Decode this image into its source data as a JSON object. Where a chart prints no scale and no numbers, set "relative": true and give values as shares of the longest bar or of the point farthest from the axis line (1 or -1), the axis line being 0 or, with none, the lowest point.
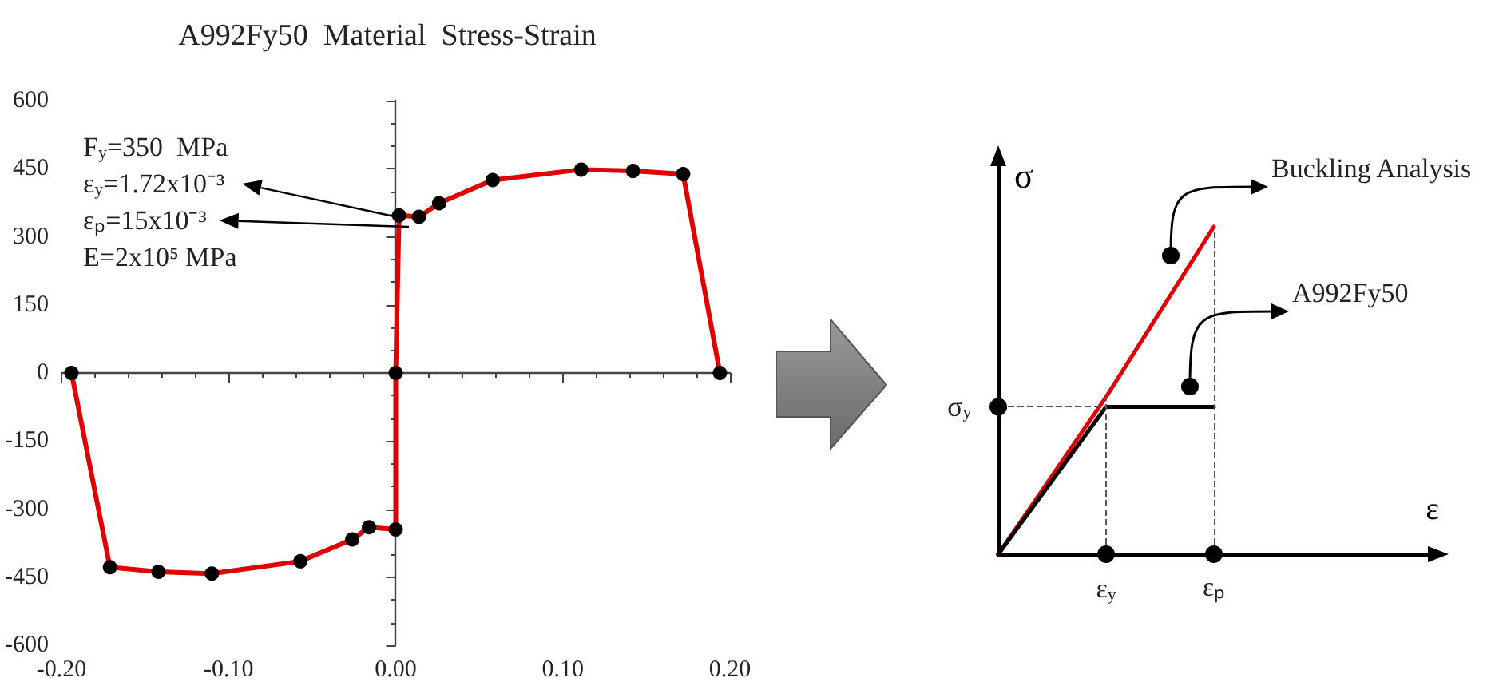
{
  "chart_data": [
    {
      "type": "line",
      "title": "A992Fy50  Material  Stress-Strain",
      "xlim": [
        -0.2,
        0.2
      ],
      "xticks": [
        {
          "value": -0.2,
          "label": "-0.20"
        },
        {
          "value": -0.1,
          "label": "-0.10"
        },
        {
          "value": 0,
          "label": "0.00"
        },
        {
          "value": 0.1,
          "label": "0.10"
        },
        {
          "value": 0.2,
          "label": "0.20"
        }
      ],
      "ylim": [
        -600,
        600
      ],
      "yticks": [
        -600,
        -450,
        -300,
        -150,
        0,
        150,
        300,
        450,
        600
      ],
      "marker": "circle",
      "series": [
        {
          "color": "#e00000",
          "x": [
            -0.194,
            -0.171,
            -0.142,
            -0.11,
            -0.057,
            -0.026,
            -0.016,
            0,
            0,
            0.002,
            0.014,
            0.026,
            0.058,
            0.111,
            0.142,
            0.172,
            0.194
          ],
          "values": [
            0,
            -428,
            -438,
            -442,
            -415,
            -367,
            -340,
            -345,
            0,
            347,
            344,
            374,
            425,
            448,
            445,
            438,
            0
          ]
        }
      ],
      "annotations": [
        "F$_{y}$=350  MPa",
        "ε$_{y}$=1.72x10⁻³",
        "εₚ=15x10⁻³",
        "E=2x10⁵ MPa"
      ]
    },
    {
      "type": "line",
      "relative": true,
      "xlabel": "ε",
      "ylabel": "σ",
      "categories": [
        null,
        "ε$_{y}$",
        "εₚ",
        null,
        null
      ],
      "tick_labels": "x",
      "marker": "none",
      "series": [
        {
          "color": "#e00000",
          "values": [
            0,
            0.48,
            1,
            null,
            null
          ]
        },
        {
          "color": "#000000",
          "values": [
            0,
            0.45,
            0.45,
            null,
            null
          ]
        }
      ],
      "annotations": [
        "Buckling Analysis",
        "A992Fy50"
      ],
      "ref_lines": [
        {
          "axis": "y",
          "value": 0.45,
          "label": "σ$_{y}$",
          "line_style": "dashed"
        },
        {
          "axis": "x",
          "value": "ε$_{y}$",
          "line_style": "dashed"
        },
        {
          "axis": "x",
          "value": "εₚ",
          "line_style": "dashed"
        }
      ]
    }
  ]
}
